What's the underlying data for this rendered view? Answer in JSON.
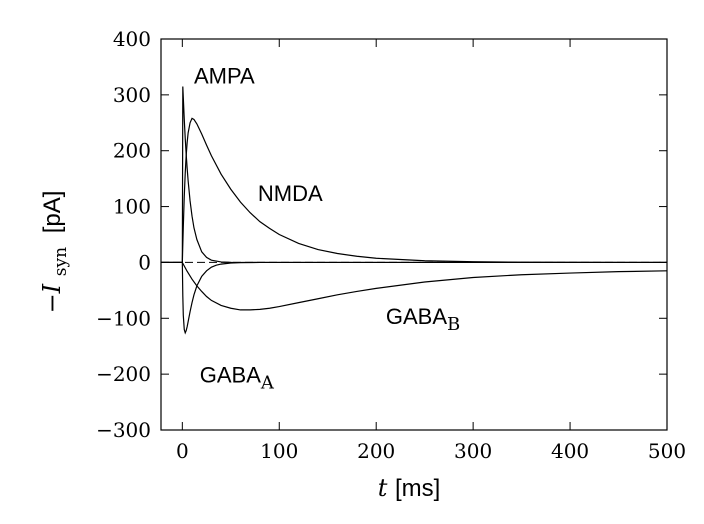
{
  "chart_data": {
    "type": "line",
    "x_axis": {
      "var": "t",
      "unit": "[ms]",
      "range": [
        -22,
        500
      ],
      "ticks": [
        0,
        100,
        200,
        300,
        400,
        500
      ],
      "tick_labels": [
        "0",
        "100",
        "200",
        "300",
        "400",
        "500"
      ]
    },
    "y_axis": {
      "var": "−I",
      "sub": "syn",
      "unit": "[pA]",
      "range": [
        -300,
        400
      ],
      "ticks": [
        400,
        300,
        200,
        100,
        0,
        -100,
        -200,
        -300
      ],
      "tick_labels": [
        "400",
        "300",
        "200",
        "100",
        "0",
        "−100",
        "−200",
        "−300"
      ]
    },
    "zero_line": true,
    "grid": false,
    "series": [
      {
        "name": "AMPA",
        "label_main": "AMPA",
        "label_sub": "",
        "label_at": [
          12,
          320
        ],
        "points": [
          [
            -22,
            0
          ],
          [
            0,
            0
          ],
          [
            0.5,
            315
          ],
          [
            1,
            295
          ],
          [
            2,
            256
          ],
          [
            3,
            222
          ],
          [
            4,
            193
          ],
          [
            5,
            168
          ],
          [
            6,
            146
          ],
          [
            8,
            110
          ],
          [
            10,
            83
          ],
          [
            12,
            62
          ],
          [
            15,
            41
          ],
          [
            20,
            19
          ],
          [
            25,
            9
          ],
          [
            30,
            4
          ],
          [
            40,
            0.9
          ],
          [
            50,
            0.2
          ],
          [
            60,
            0
          ],
          [
            500,
            0
          ]
        ]
      },
      {
        "name": "NMDA",
        "label_main": "NMDA",
        "label_sub": "",
        "label_at": [
          78,
          110
        ],
        "points": [
          [
            -22,
            0
          ],
          [
            0,
            0
          ],
          [
            1,
            64
          ],
          [
            2,
            118
          ],
          [
            3,
            160
          ],
          [
            4,
            192
          ],
          [
            5,
            215
          ],
          [
            6,
            232
          ],
          [
            8,
            250
          ],
          [
            10,
            258
          ],
          [
            12,
            256
          ],
          [
            15,
            248
          ],
          [
            20,
            230
          ],
          [
            25,
            210
          ],
          [
            30,
            191
          ],
          [
            40,
            158
          ],
          [
            50,
            131
          ],
          [
            60,
            108
          ],
          [
            70,
            89
          ],
          [
            80,
            73
          ],
          [
            90,
            61
          ],
          [
            100,
            50
          ],
          [
            120,
            34
          ],
          [
            140,
            23
          ],
          [
            160,
            16
          ],
          [
            180,
            11
          ],
          [
            200,
            7.5
          ],
          [
            250,
            3
          ],
          [
            300,
            1.2
          ],
          [
            350,
            0.4
          ],
          [
            400,
            0.1
          ],
          [
            450,
            0
          ],
          [
            500,
            0
          ]
        ]
      },
      {
        "name": "GABA_A",
        "label_main": "GABA",
        "label_sub": "A",
        "label_at": [
          18,
          -215
        ],
        "points": [
          [
            -22,
            0
          ],
          [
            0,
            0
          ],
          [
            0.5,
            -60
          ],
          [
            1,
            -95
          ],
          [
            2,
            -120
          ],
          [
            3,
            -126
          ],
          [
            4,
            -122
          ],
          [
            5,
            -115
          ],
          [
            6,
            -106
          ],
          [
            8,
            -88
          ],
          [
            10,
            -72
          ],
          [
            12,
            -58
          ],
          [
            15,
            -42
          ],
          [
            20,
            -25
          ],
          [
            25,
            -15
          ],
          [
            30,
            -8.5
          ],
          [
            35,
            -5
          ],
          [
            40,
            -3
          ],
          [
            50,
            -1
          ],
          [
            60,
            -0.3
          ],
          [
            80,
            0
          ],
          [
            500,
            0
          ]
        ]
      },
      {
        "name": "GABA_B",
        "label_main": "GABA",
        "label_sub": "B",
        "label_at": [
          210,
          -110
        ],
        "points": [
          [
            -22,
            0
          ],
          [
            0,
            0
          ],
          [
            5,
            -16
          ],
          [
            10,
            -30
          ],
          [
            15,
            -42
          ],
          [
            20,
            -52
          ],
          [
            25,
            -61
          ],
          [
            30,
            -68
          ],
          [
            40,
            -77
          ],
          [
            50,
            -82
          ],
          [
            60,
            -85
          ],
          [
            70,
            -85
          ],
          [
            80,
            -84
          ],
          [
            90,
            -82
          ],
          [
            100,
            -79
          ],
          [
            120,
            -72
          ],
          [
            140,
            -65
          ],
          [
            160,
            -58
          ],
          [
            180,
            -52
          ],
          [
            200,
            -46.5
          ],
          [
            250,
            -35
          ],
          [
            300,
            -27
          ],
          [
            350,
            -22
          ],
          [
            400,
            -19
          ],
          [
            450,
            -16.5
          ],
          [
            500,
            -15
          ]
        ]
      }
    ]
  }
}
